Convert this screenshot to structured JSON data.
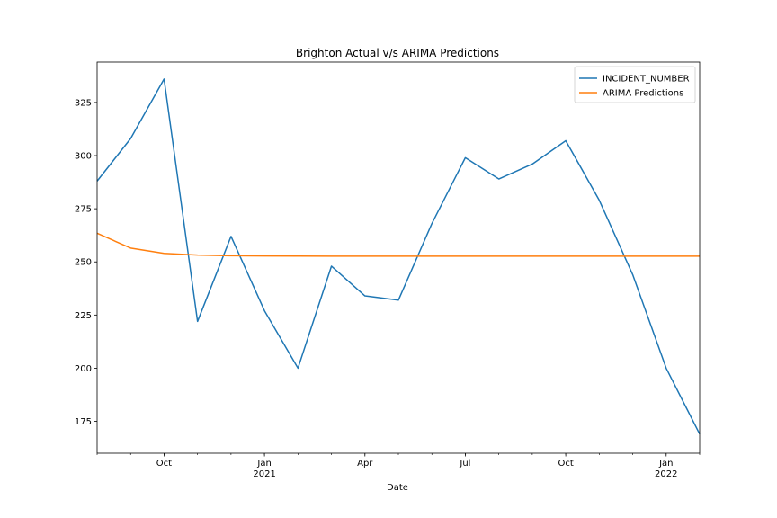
{
  "chart_data": {
    "type": "line",
    "title": "Brighton Actual v/s ARIMA Predictions",
    "xlabel": "Date",
    "ylabel": "",
    "x": [
      "2020-08",
      "2020-09",
      "2020-10",
      "2020-11",
      "2020-12",
      "2021-01",
      "2021-02",
      "2021-03",
      "2021-04",
      "2021-05",
      "2021-06",
      "2021-07",
      "2021-08",
      "2021-09",
      "2021-10",
      "2021-11",
      "2021-12",
      "2022-01",
      "2022-02"
    ],
    "xlim": [
      "2020-08",
      "2022-02"
    ],
    "ylim": [
      160,
      344
    ],
    "yticks": [
      175,
      200,
      225,
      250,
      275,
      300,
      325
    ],
    "xticks": [
      {
        "x": "2020-10",
        "label": "Oct",
        "sublabel": ""
      },
      {
        "x": "2021-01",
        "label": "Jan",
        "sublabel": "2021"
      },
      {
        "x": "2021-04",
        "label": "Apr",
        "sublabel": ""
      },
      {
        "x": "2021-07",
        "label": "Jul",
        "sublabel": ""
      },
      {
        "x": "2021-10",
        "label": "Oct",
        "sublabel": ""
      },
      {
        "x": "2022-01",
        "label": "Jan",
        "sublabel": "2022"
      }
    ],
    "legend_position": "top-right",
    "grid": false,
    "series": [
      {
        "name": "INCIDENT_NUMBER",
        "color": "#1f77b4",
        "values": [
          288,
          308,
          336,
          222,
          262,
          227,
          200,
          248,
          234,
          232,
          268,
          299,
          289,
          296,
          307,
          279,
          244,
          200,
          169
        ]
      },
      {
        "name": "ARIMA Predictions",
        "color": "#ff7f0e",
        "values": [
          263.5,
          256.5,
          254,
          253.2,
          252.9,
          252.8,
          252.75,
          252.7,
          252.7,
          252.7,
          252.7,
          252.7,
          252.7,
          252.7,
          252.7,
          252.7,
          252.7,
          252.7,
          252.7
        ]
      }
    ]
  }
}
